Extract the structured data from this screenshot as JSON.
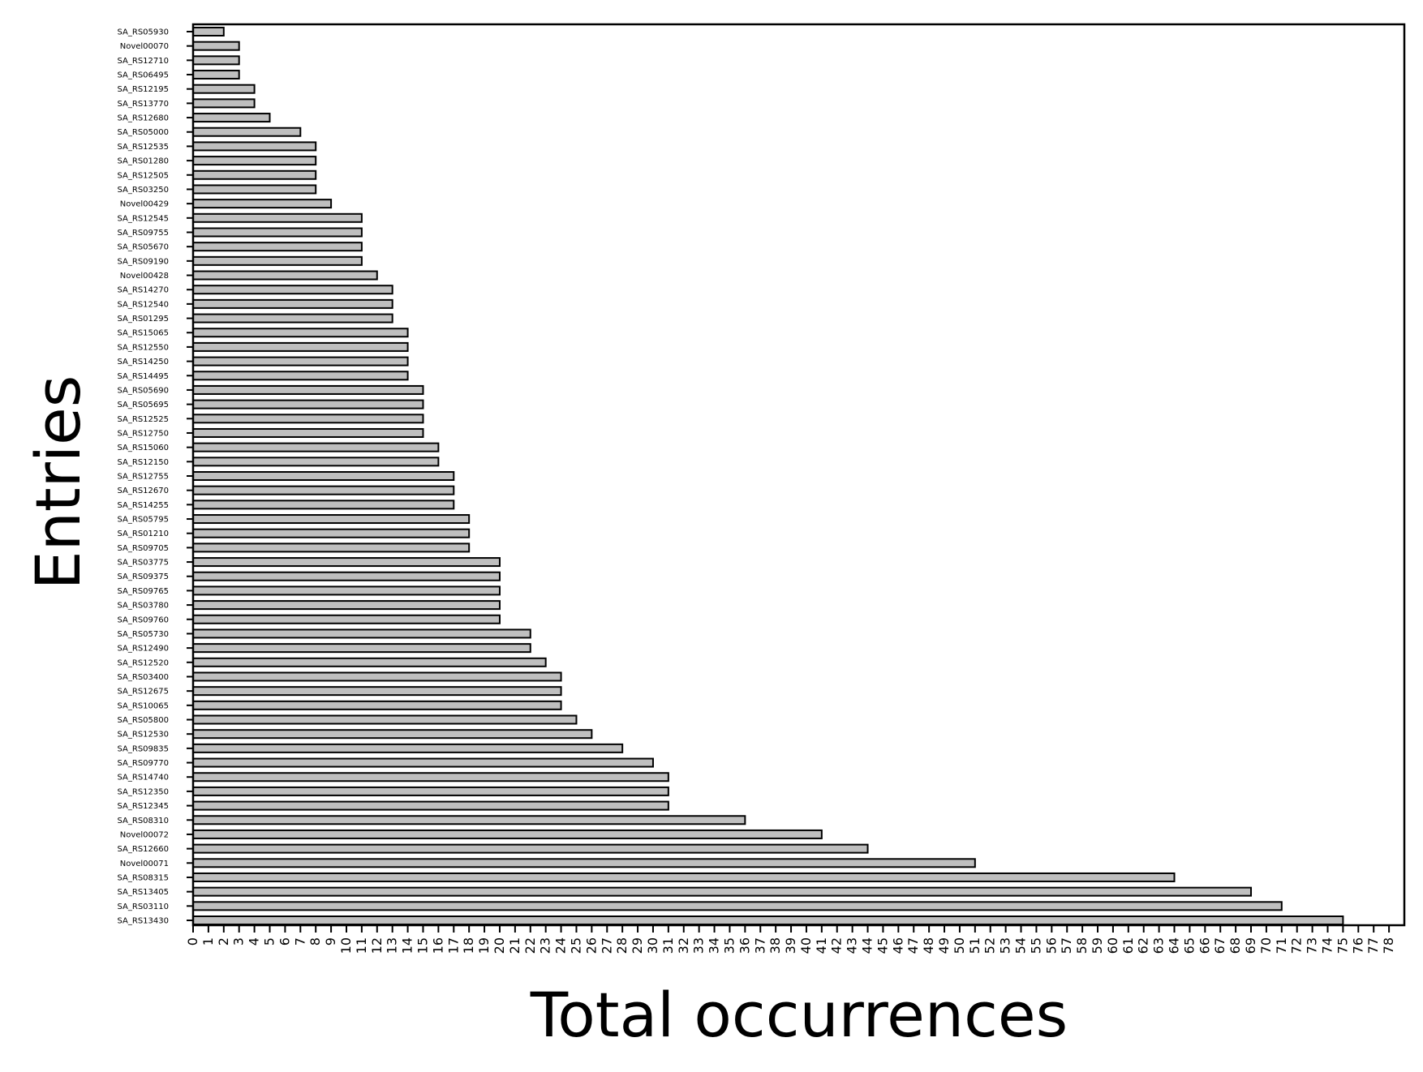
{
  "chart_data": {
    "type": "bar",
    "orientation": "horizontal",
    "title": "",
    "xlabel": "Total occurrences",
    "ylabel": "Entries",
    "xlim": [
      0,
      79
    ],
    "x_ticks": [
      0,
      1,
      2,
      3,
      4,
      5,
      6,
      7,
      8,
      9,
      10,
      11,
      12,
      13,
      14,
      15,
      16,
      17,
      18,
      19,
      20,
      21,
      22,
      23,
      24,
      25,
      26,
      27,
      28,
      29,
      30,
      31,
      32,
      33,
      34,
      35,
      36,
      37,
      38,
      39,
      40,
      41,
      42,
      43,
      44,
      45,
      46,
      47,
      48,
      49,
      50,
      51,
      52,
      53,
      54,
      55,
      56,
      57,
      58,
      59,
      60,
      61,
      62,
      63,
      64,
      65,
      66,
      67,
      68,
      69,
      70,
      71,
      72,
      73,
      74,
      75,
      76,
      77,
      78
    ],
    "grid": false,
    "bar_color": "#bfbfbf",
    "edge_color": "#000000",
    "categories": [
      "SA_RS05930",
      "Novel00070",
      "SA_RS12710",
      "SA_RS06495",
      "SA_RS12195",
      "SA_RS13770",
      "SA_RS12680",
      "SA_RS05000",
      "SA_RS12535",
      "SA_RS01280",
      "SA_RS12505",
      "SA_RS03250",
      "Novel00429",
      "SA_RS12545",
      "SA_RS09755",
      "SA_RS05670",
      "SA_RS09190",
      "Novel00428",
      "SA_RS14270",
      "SA_RS12540",
      "SA_RS01295",
      "SA_RS15065",
      "SA_RS12550",
      "SA_RS14250",
      "SA_RS14495",
      "SA_RS05690",
      "SA_RS05695",
      "SA_RS12525",
      "SA_RS12750",
      "SA_RS15060",
      "SA_RS12150",
      "SA_RS12755",
      "SA_RS12670",
      "SA_RS14255",
      "SA_RS05795",
      "SA_RS01210",
      "SA_RS09705",
      "SA_RS03775",
      "SA_RS09375",
      "SA_RS09765",
      "SA_RS03780",
      "SA_RS09760",
      "SA_RS05730",
      "SA_RS12490",
      "SA_RS12520",
      "SA_RS03400",
      "SA_RS12675",
      "SA_RS10065",
      "SA_RS05800",
      "SA_RS12530",
      "SA_RS09835",
      "SA_RS09770",
      "SA_RS14740",
      "SA_RS12350",
      "SA_RS12345",
      "SA_RS08310",
      "Novel00072",
      "SA_RS12660",
      "Novel00071",
      "SA_RS08315",
      "SA_RS13405",
      "SA_RS03110",
      "SA_RS13430"
    ],
    "values": [
      2,
      3,
      3,
      3,
      4,
      4,
      5,
      7,
      8,
      8,
      8,
      8,
      9,
      11,
      11,
      11,
      11,
      12,
      13,
      13,
      13,
      14,
      14,
      14,
      14,
      15,
      15,
      15,
      15,
      16,
      16,
      17,
      17,
      17,
      18,
      18,
      18,
      20,
      20,
      20,
      20,
      20,
      22,
      22,
      23,
      24,
      24,
      24,
      25,
      26,
      28,
      30,
      31,
      31,
      31,
      36,
      41,
      44,
      51,
      64,
      69,
      71,
      75
    ]
  }
}
